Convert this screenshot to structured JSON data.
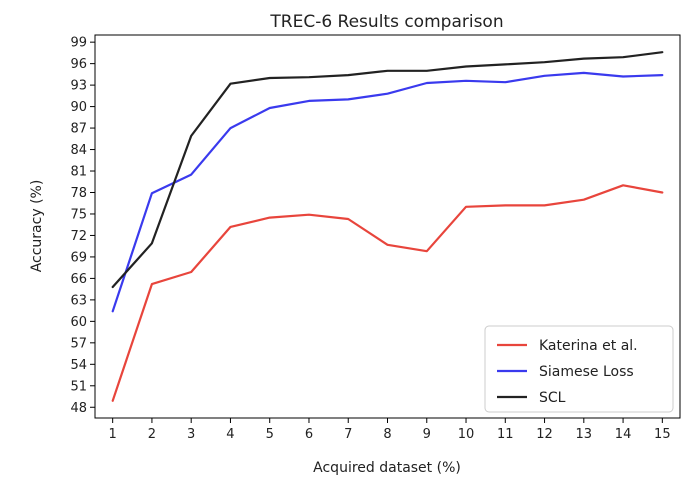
{
  "chart_data": {
    "type": "line",
    "title": "TREC-6 Results comparison",
    "xlabel": "Acquired dataset (%)",
    "ylabel": "Accuracy (%)",
    "x": [
      1,
      2,
      3,
      4,
      5,
      6,
      7,
      8,
      9,
      10,
      11,
      12,
      13,
      14,
      15
    ],
    "xticks": [
      "1",
      "2",
      "3",
      "4",
      "5",
      "6",
      "7",
      "8",
      "9",
      "10",
      "11",
      "12",
      "13",
      "14",
      "15"
    ],
    "yticks": [
      48,
      51,
      54,
      57,
      60,
      63,
      66,
      69,
      72,
      75,
      78,
      81,
      84,
      87,
      90,
      93,
      96,
      99
    ],
    "ylim": [
      46.5,
      100
    ],
    "xlim": [
      0.55,
      15.45
    ],
    "grid": false,
    "legend_position": "lower-right",
    "series": [
      {
        "name": "Katerina et al.",
        "color": "#e8453c",
        "values": [
          48.9,
          65.2,
          66.9,
          73.2,
          74.5,
          74.9,
          74.3,
          70.7,
          69.8,
          76.0,
          76.2,
          76.2,
          77.0,
          79.0,
          78.0
        ]
      },
      {
        "name": "Siamese Loss",
        "color": "#3a3aee",
        "values": [
          61.4,
          77.9,
          80.5,
          87.0,
          89.8,
          90.8,
          91.0,
          91.8,
          93.3,
          93.6,
          93.4,
          94.3,
          94.7,
          94.2,
          94.4
        ]
      },
      {
        "name": "SCL",
        "color": "#222222",
        "values": [
          64.8,
          70.9,
          85.9,
          93.2,
          94.0,
          94.1,
          94.4,
          95.0,
          95.0,
          95.6,
          95.9,
          96.2,
          96.7,
          96.9,
          97.6
        ]
      }
    ]
  }
}
